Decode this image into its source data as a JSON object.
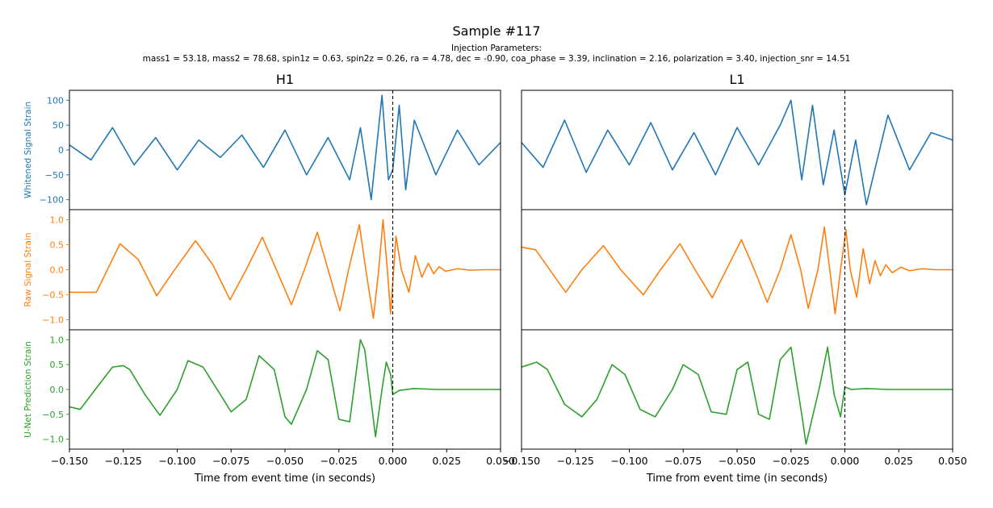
{
  "title": "Sample #117",
  "subtitle_line1": "Injection Parameters:",
  "subtitle_line2": "mass1 = 53.18, mass2 = 78.68, spin1z = 0.63, spin2z = 0.26, ra = 4.78, dec = -0.90, coa_phase = 3.39, inclination = 2.16, polarization = 3.40, injection_snr = 14.51",
  "colors": {
    "whitened": "#1f77b4",
    "raw": "#ff7f0e",
    "unet": "#2ca02c",
    "event_line": "#000000"
  },
  "chart_data": {
    "type": "line",
    "xlabel": "Time from event time (in seconds)",
    "xlim": [
      -0.15,
      0.05
    ],
    "x_ticks": [
      -0.15,
      -0.125,
      -0.1,
      -0.075,
      -0.05,
      -0.025,
      0.0,
      0.025,
      0.05
    ],
    "x_tick_labels": [
      "−0.150",
      "−0.125",
      "−0.100",
      "−0.075",
      "−0.050",
      "−0.025",
      "0.000",
      "0.025",
      "0.050"
    ],
    "event_time": 0.0,
    "rows": [
      {
        "key": "whitened",
        "ylabel": "Whitened Signal Strain",
        "ylim": [
          -120,
          120
        ],
        "y_ticks": [
          -100,
          -50,
          0,
          50,
          100
        ],
        "y_tick_labels": [
          "−100",
          "−50",
          "0",
          "50",
          "100"
        ]
      },
      {
        "key": "raw",
        "ylabel": "Raw Signal Strain",
        "ylim": [
          -1.2,
          1.2
        ],
        "y_ticks": [
          -1.0,
          -0.5,
          0.0,
          0.5,
          1.0
        ],
        "y_tick_labels": [
          "−1.0",
          "−0.5",
          "0.0",
          "0.5",
          "1.0"
        ]
      },
      {
        "key": "unet",
        "ylabel": "U-Net Prediction Strain",
        "ylim": [
          -1.2,
          1.2
        ],
        "y_ticks": [
          -1.0,
          -0.5,
          0.0,
          0.5,
          1.0
        ],
        "y_tick_labels": [
          "−1.0",
          "−0.5",
          "0.0",
          "0.5",
          "1.0"
        ]
      }
    ],
    "detectors": [
      {
        "name": "H1",
        "series": {
          "whitened": {
            "x": [
              -0.15,
              -0.14,
              -0.13,
              -0.12,
              -0.11,
              -0.1,
              -0.09,
              -0.08,
              -0.07,
              -0.06,
              -0.05,
              -0.04,
              -0.03,
              -0.02,
              -0.015,
              -0.01,
              -0.005,
              -0.002,
              0.0,
              0.003,
              0.006,
              0.01,
              0.02,
              0.03,
              0.04,
              0.05
            ],
            "y": [
              10,
              -20,
              45,
              -30,
              25,
              -40,
              20,
              -15,
              30,
              -35,
              40,
              -50,
              25,
              -60,
              45,
              -100,
              110,
              -60,
              -40,
              90,
              -80,
              60,
              -50,
              40,
              -30,
              15
            ]
          },
          "raw": {
            "x": [
              -0.15,
              -0.1375,
              -0.1265,
              -0.118,
              -0.1095,
              -0.102,
              -0.0915,
              -0.0835,
              -0.0755,
              -0.068,
              -0.0605,
              -0.054,
              -0.047,
              -0.041,
              -0.035,
              -0.03,
              -0.0245,
              -0.0205,
              -0.0155,
              -0.0125,
              -0.009,
              -0.0065,
              -0.0045,
              -0.0025,
              -0.001,
              0.0015,
              0.004,
              0.0075,
              0.0105,
              0.0135,
              0.0165,
              0.019,
              0.0215,
              0.0245,
              0.03,
              0.036,
              0.042,
              0.05
            ],
            "y": [
              -0.45,
              -0.45,
              0.52,
              0.2,
              -0.52,
              -0.05,
              0.58,
              0.1,
              -0.6,
              0.0,
              0.65,
              0.0,
              -0.7,
              0.0,
              0.75,
              0.0,
              -0.82,
              0.0,
              0.9,
              0.0,
              -0.97,
              0.0,
              1.0,
              0.0,
              -0.88,
              0.67,
              0.0,
              -0.45,
              0.28,
              -0.15,
              0.13,
              -0.08,
              0.06,
              -0.03,
              0.02,
              -0.01,
              0.0,
              0.0
            ]
          },
          "unet": {
            "x": [
              -0.15,
              -0.145,
              -0.138,
              -0.13,
              -0.125,
              -0.122,
              -0.115,
              -0.108,
              -0.1,
              -0.095,
              -0.088,
              -0.08,
              -0.075,
              -0.068,
              -0.062,
              -0.055,
              -0.05,
              -0.047,
              -0.04,
              -0.035,
              -0.03,
              -0.025,
              -0.02,
              -0.015,
              -0.013,
              -0.008,
              -0.005,
              -0.003,
              -0.001,
              0.0,
              0.003,
              0.01,
              0.02,
              0.05
            ],
            "y": [
              -0.35,
              -0.4,
              0.0,
              0.45,
              0.48,
              0.4,
              -0.1,
              -0.52,
              0.0,
              0.58,
              0.45,
              -0.1,
              -0.45,
              -0.2,
              0.68,
              0.4,
              -0.55,
              -0.7,
              0.0,
              0.78,
              0.6,
              -0.6,
              -0.65,
              1.0,
              0.8,
              -0.95,
              0.0,
              0.55,
              0.3,
              -0.1,
              -0.02,
              0.02,
              0.0,
              0.0
            ]
          }
        }
      },
      {
        "name": "L1",
        "series": {
          "whitened": {
            "x": [
              -0.15,
              -0.14,
              -0.13,
              -0.12,
              -0.11,
              -0.1,
              -0.09,
              -0.08,
              -0.07,
              -0.06,
              -0.05,
              -0.04,
              -0.03,
              -0.025,
              -0.02,
              -0.015,
              -0.01,
              -0.005,
              0.0,
              0.005,
              0.01,
              0.02,
              0.03,
              0.04,
              0.05
            ],
            "y": [
              15,
              -35,
              60,
              -45,
              40,
              -30,
              55,
              -40,
              35,
              -50,
              45,
              -30,
              50,
              100,
              -60,
              90,
              -70,
              40,
              -90,
              20,
              -110,
              70,
              -40,
              35,
              20
            ]
          },
          "raw": {
            "x": [
              -0.15,
              -0.1435,
              -0.1295,
              -0.122,
              -0.112,
              -0.104,
              -0.0935,
              -0.0855,
              -0.0765,
              -0.0695,
              -0.0615,
              -0.055,
              -0.048,
              -0.042,
              -0.036,
              -0.03,
              -0.025,
              -0.0205,
              -0.017,
              -0.0125,
              -0.0095,
              -0.007,
              -0.0045,
              -0.002,
              0.0005,
              0.0025,
              0.0055,
              0.0085,
              0.0115,
              0.014,
              0.0165,
              0.019,
              0.022,
              0.026,
              0.03,
              0.036,
              0.042,
              0.05
            ],
            "y": [
              0.45,
              0.4,
              -0.45,
              0.0,
              0.48,
              0.0,
              -0.5,
              0.0,
              0.52,
              0.0,
              -0.56,
              0.0,
              0.6,
              0.0,
              -0.65,
              0.0,
              0.7,
              0.0,
              -0.77,
              0.0,
              0.85,
              0.0,
              -0.88,
              0.0,
              0.8,
              0.0,
              -0.55,
              0.42,
              -0.28,
              0.18,
              -0.12,
              0.1,
              -0.06,
              0.05,
              -0.02,
              0.02,
              0.0,
              0.0
            ]
          },
          "unet": {
            "x": [
              -0.15,
              -0.143,
              -0.138,
              -0.13,
              -0.122,
              -0.115,
              -0.108,
              -0.102,
              -0.095,
              -0.088,
              -0.08,
              -0.075,
              -0.068,
              -0.062,
              -0.055,
              -0.05,
              -0.045,
              -0.04,
              -0.035,
              -0.03,
              -0.025,
              -0.02,
              -0.018,
              -0.012,
              -0.008,
              -0.005,
              -0.002,
              0.0,
              0.003,
              0.01,
              0.02,
              0.05
            ],
            "y": [
              0.45,
              0.55,
              0.4,
              -0.3,
              -0.55,
              -0.2,
              0.5,
              0.3,
              -0.4,
              -0.55,
              0.0,
              0.5,
              0.3,
              -0.45,
              -0.5,
              0.4,
              0.55,
              -0.5,
              -0.6,
              0.6,
              0.85,
              -0.5,
              -1.1,
              0.0,
              0.85,
              -0.1,
              -0.55,
              0.05,
              0.0,
              0.02,
              0.0,
              0.0
            ]
          }
        }
      }
    ]
  }
}
